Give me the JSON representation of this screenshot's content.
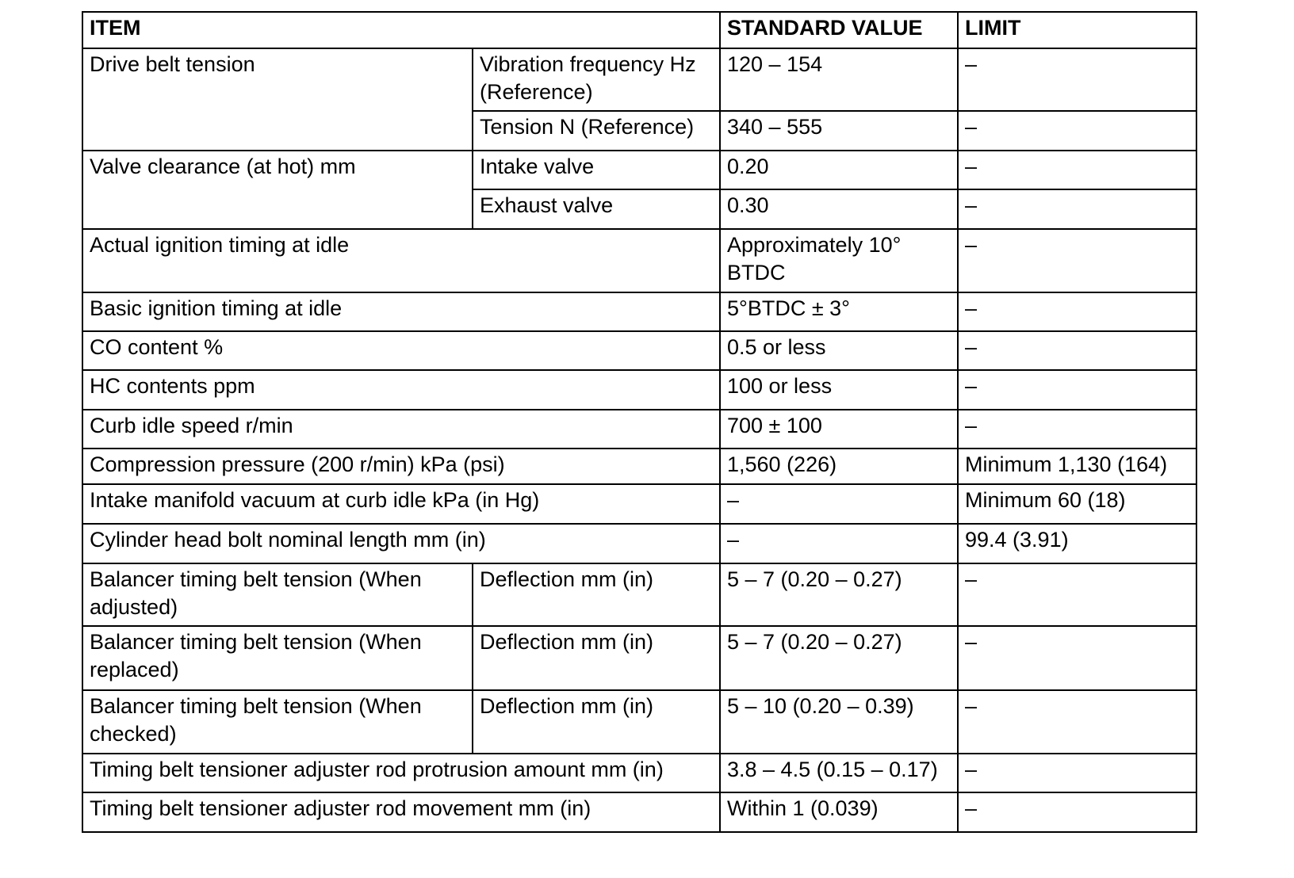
{
  "header": {
    "item": "ITEM",
    "standard": "STANDARD VALUE",
    "limit": "LIMIT"
  },
  "rows": [
    {
      "item": "Drive belt tension",
      "subs": [
        {
          "sub": "Vibration frequency Hz (Reference)",
          "standard": "120 – 154",
          "limit": "–"
        },
        {
          "sub": "Tension N (Reference)",
          "standard": "340 – 555",
          "limit": "–"
        }
      ]
    },
    {
      "item": "Valve clearance (at hot) mm",
      "subs": [
        {
          "sub": "Intake valve",
          "standard": "0.20",
          "limit": "–"
        },
        {
          "sub": "Exhaust valve",
          "standard": "0.30",
          "limit": "–"
        }
      ]
    },
    {
      "item": "Actual ignition timing at idle",
      "standard": "Approximately 10° BTDC",
      "limit": "–"
    },
    {
      "item": "Basic ignition timing at idle",
      "standard": "5°BTDC ± 3°",
      "limit": "–"
    },
    {
      "item": "CO content %",
      "standard": "0.5 or less",
      "limit": "–"
    },
    {
      "item": "HC contents ppm",
      "standard": "100 or less",
      "limit": "–"
    },
    {
      "item": "Curb idle speed r/min",
      "standard": "700 ± 100",
      "limit": "–"
    },
    {
      "item": "Compression pressure (200 r/min) kPa (psi)",
      "standard": "1,560 (226)",
      "limit": "Minimum 1,130 (164)"
    },
    {
      "item": "Intake manifold vacuum at curb idle kPa (in Hg)",
      "standard": "–",
      "limit": "Minimum 60 (18)"
    },
    {
      "item": "Cylinder head bolt nominal length mm (in)",
      "standard": "–",
      "limit": "99.4 (3.91)"
    },
    {
      "item": "Balancer timing belt tension (When adjusted)",
      "subs": [
        {
          "sub": "Deflection mm (in)",
          "standard": "5 – 7 (0.20 – 0.27)",
          "limit": "–"
        }
      ]
    },
    {
      "item": "Balancer timing belt tension (When replaced)",
      "subs": [
        {
          "sub": "Deflection mm (in)",
          "standard": "5 – 7 (0.20 – 0.27)",
          "limit": "–"
        }
      ]
    },
    {
      "item": "Balancer timing belt tension (When checked)",
      "subs": [
        {
          "sub": "Deflection mm (in)",
          "standard": "5 – 10 (0.20 – 0.39)",
          "limit": "–"
        }
      ]
    },
    {
      "item": "Timing belt tensioner adjuster rod protrusion amount mm (in)",
      "standard": "3.8 – 4.5 (0.15 – 0.17)",
      "limit": "–"
    },
    {
      "item": "Timing belt tensioner adjuster rod movement mm (in)",
      "standard": "Within 1 (0.039)",
      "limit": "–"
    }
  ]
}
